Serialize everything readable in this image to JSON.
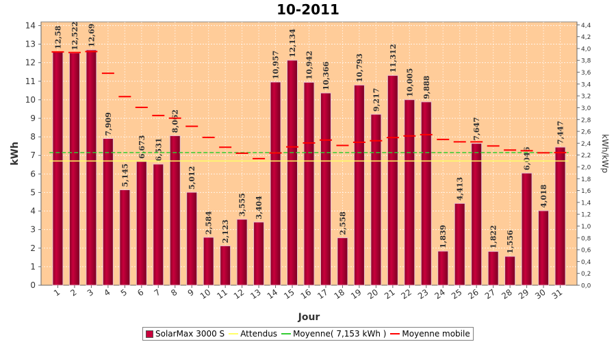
{
  "chart_data": {
    "type": "bar",
    "title": "10-2011",
    "xlabel": "Jour",
    "ylabel": "kWh",
    "ylabel_right": "kWh/kWp",
    "ylim": [
      0,
      14.2
    ],
    "ylim_right": [
      0,
      4.45
    ],
    "yticks": [
      "0",
      "1",
      "2",
      "3",
      "4",
      "5",
      "6",
      "7",
      "8",
      "9",
      "10",
      "11",
      "12",
      "13",
      "14"
    ],
    "yticks_right": [
      "0,0",
      "0,2",
      "0,4",
      "0,6",
      "0,8",
      "1,0",
      "1,2",
      "1,4",
      "1,6",
      "1,8",
      "2,0",
      "2,2",
      "2,4",
      "2,6",
      "2,8",
      "3,0",
      "3,2",
      "3,4",
      "3,6",
      "3,8",
      "4,0",
      "4,2",
      "4,4"
    ],
    "categories": [
      "1",
      "2",
      "3",
      "4",
      "5",
      "6",
      "7",
      "8",
      "9",
      "10",
      "11",
      "12",
      "13",
      "14",
      "15",
      "16",
      "17",
      "18",
      "19",
      "20",
      "21",
      "22",
      "23",
      "24",
      "25",
      "26",
      "27",
      "28",
      "29",
      "30",
      "31"
    ],
    "series": [
      {
        "name": "SolarMax 3000 S",
        "kind": "bar",
        "color": "#c8003c",
        "values": [
          12.58,
          12.522,
          12.69,
          7.909,
          5.145,
          6.673,
          6.531,
          8.062,
          5.012,
          2.584,
          2.123,
          3.555,
          3.404,
          10.957,
          12.134,
          10.942,
          10.366,
          2.558,
          10.793,
          9.217,
          11.312,
          10.005,
          9.888,
          1.839,
          4.413,
          7.647,
          1.822,
          1.556,
          6.046,
          4.018,
          7.447
        ],
        "labels": [
          "12,58",
          "12,522",
          "12,69",
          "7,909",
          "5,145",
          "6,673",
          "6,531",
          "8,062",
          "5,012",
          "2,584",
          "2,123",
          "3,555",
          "3,404",
          "10,957",
          "12,134",
          "10,942",
          "10,366",
          "2,558",
          "10,793",
          "9,217",
          "11,312",
          "10,005",
          "9,888",
          "1,839",
          "4,413",
          "7,647",
          "1,822",
          "1,556",
          "6,046",
          "4,018",
          "7,447"
        ]
      },
      {
        "name": "Attendus",
        "kind": "hline",
        "color": "#ffff66",
        "value": 6.7
      },
      {
        "name": "Moyenne( 7,153 kWh )",
        "kind": "hline",
        "color": "#33cc33",
        "value": 7.153
      },
      {
        "name": "Moyenne mobile",
        "kind": "step",
        "color": "#ff0000",
        "values": [
          12.58,
          12.55,
          12.6,
          11.43,
          10.17,
          9.59,
          9.15,
          9.01,
          8.57,
          7.97,
          7.44,
          7.12,
          6.83,
          7.13,
          7.46,
          7.67,
          7.83,
          7.54,
          7.71,
          7.79,
          7.96,
          8.05,
          8.12,
          7.86,
          7.73,
          7.73,
          7.51,
          7.29,
          7.25,
          7.14,
          7.15
        ]
      }
    ],
    "legend_position": "bottom",
    "grid": true,
    "plot_background": "#ffcc99"
  }
}
